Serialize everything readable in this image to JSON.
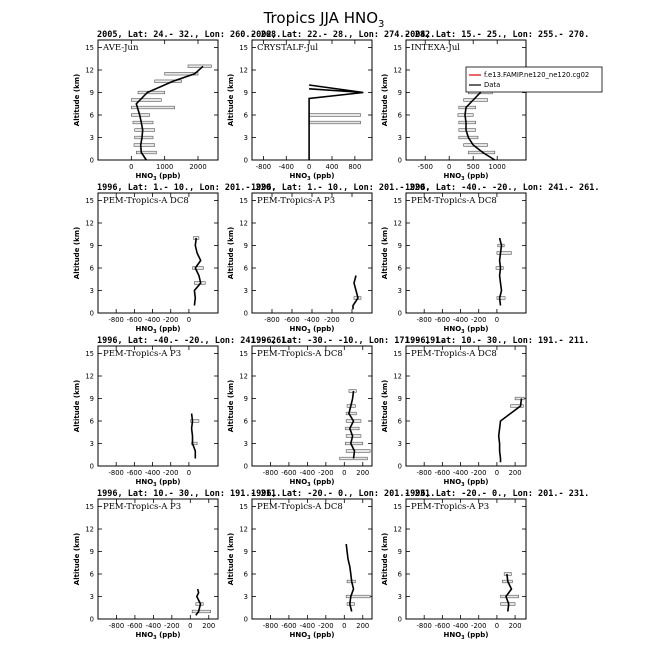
{
  "title": "Tropics JJA HNO",
  "title_sub": "3",
  "chart_data": [
    {
      "type": "line",
      "header": "2005, Lat: 24.- 32., Lon: 260.- 268.",
      "campaign": "AVE-Jun",
      "xlabel": "HNO3 (ppb)",
      "ylabel": "Altitude (km)",
      "xlim": [
        -1000,
        2600
      ],
      "xticks": [
        0,
        1000,
        2000
      ],
      "xtick_labels": [
        "0",
        "1000",
        "2000"
      ],
      "ylim": [
        0,
        16
      ],
      "yticks": [
        0,
        3,
        6,
        9,
        12,
        15
      ],
      "profile": {
        "x": [
          450,
          300,
          280,
          320,
          340,
          300,
          250,
          150,
          480,
          1250,
          1900,
          2150
        ],
        "y": [
          0,
          1,
          2,
          3,
          4,
          5,
          6,
          7.5,
          9,
          10.5,
          11.5,
          12.5
        ]
      },
      "bars": [
        {
          "y": 1,
          "lo": 150,
          "hi": 750
        },
        {
          "y": 2,
          "lo": 80,
          "hi": 700
        },
        {
          "y": 3,
          "lo": 100,
          "hi": 650
        },
        {
          "y": 4,
          "lo": 100,
          "hi": 700
        },
        {
          "y": 5,
          "lo": 50,
          "hi": 650
        },
        {
          "y": 6,
          "lo": 0,
          "hi": 550
        },
        {
          "y": 7,
          "lo": 0,
          "hi": 1300
        },
        {
          "y": 8,
          "lo": 0,
          "hi": 900
        },
        {
          "y": 9,
          "lo": 200,
          "hi": 1000
        },
        {
          "y": 10.5,
          "lo": 700,
          "hi": 1500
        },
        {
          "y": 11.5,
          "lo": 1000,
          "hi": 2000
        },
        {
          "y": 12.5,
          "lo": 1700,
          "hi": 2400
        }
      ]
    },
    {
      "type": "line",
      "header": "2002, Lat: 22.- 28., Lon: 274.- 282.",
      "campaign": "CRYSTALF-Jul",
      "xlabel": "HNO3 (ppb)",
      "ylabel": "Altitude (km)",
      "xlim": [
        -1000,
        1100
      ],
      "xticks": [
        -800,
        -400,
        0,
        400,
        800
      ],
      "xtick_labels": [
        "-800",
        "-400",
        "0",
        "400",
        "800"
      ],
      "ylim": [
        0,
        16
      ],
      "yticks": [
        0,
        3,
        6,
        9,
        12,
        15
      ],
      "profile": {
        "x": [
          0,
          0,
          0,
          0,
          0,
          950,
          0,
          950,
          0
        ],
        "y": [
          0,
          2,
          4,
          5.5,
          8.2,
          9,
          9.5,
          9,
          10
        ]
      },
      "bars": [
        {
          "y": 5,
          "lo": 0,
          "hi": 900
        },
        {
          "y": 6,
          "lo": 0,
          "hi": 900
        }
      ]
    },
    {
      "type": "line",
      "header": "2004, Lat: 15.- 25., Lon: 255.- 270.",
      "campaign": "INTEXA-Jul",
      "xlabel": "HNO3 (ppb)",
      "ylabel": "Altitude (km)",
      "xlim": [
        -900,
        1600
      ],
      "xticks": [
        -500,
        0,
        500,
        1000
      ],
      "xtick_labels": [
        "-500",
        "0",
        "500",
        "1000"
      ],
      "ylim": [
        0,
        16
      ],
      "yticks": [
        0,
        3,
        6,
        9,
        12,
        15
      ],
      "legend": [
        "f.e13.FAMIP.ne120_ne120.cg02",
        "Data"
      ],
      "profile": {
        "x": [
          950,
          700,
          500,
          400,
          350,
          350,
          330,
          350,
          500,
          650,
          700
        ],
        "y": [
          0,
          1,
          2,
          3,
          4,
          5,
          6,
          7,
          8,
          9,
          10
        ]
      },
      "bars": [
        {
          "y": 1,
          "lo": 400,
          "hi": 950
        },
        {
          "y": 2,
          "lo": 300,
          "hi": 800
        },
        {
          "y": 3,
          "lo": 200,
          "hi": 600
        },
        {
          "y": 4,
          "lo": 200,
          "hi": 550
        },
        {
          "y": 5,
          "lo": 200,
          "hi": 550
        },
        {
          "y": 6,
          "lo": 180,
          "hi": 500
        },
        {
          "y": 7,
          "lo": 200,
          "hi": 550
        },
        {
          "y": 8,
          "lo": 300,
          "hi": 800
        },
        {
          "y": 9,
          "lo": 400,
          "hi": 900
        },
        {
          "y": 10,
          "lo": 500,
          "hi": 900
        }
      ]
    },
    {
      "type": "line",
      "header": "1996, Lat: 1.- 10., Lon: 201.- 220.",
      "campaign": "PEM-Tropics-A DC8",
      "xlabel": "HNO3 (ppb)",
      "ylabel": "Altitude (km)",
      "xlim": [
        -1000,
        320
      ],
      "xticks": [
        -800,
        -600,
        -400,
        -200,
        0
      ],
      "xtick_labels": [
        "-800",
        "-600",
        "-400",
        "-200",
        "0"
      ],
      "ylim": [
        0,
        16
      ],
      "yticks": [
        0,
        3,
        6,
        9,
        12,
        15
      ],
      "profile": {
        "x": [
          60,
          70,
          60,
          130,
          110,
          70,
          130,
          90,
          70,
          80
        ],
        "y": [
          1,
          2,
          3,
          4,
          5,
          6,
          7,
          8,
          9,
          10
        ]
      },
      "bars": [
        {
          "y": 4,
          "lo": 60,
          "hi": 180
        },
        {
          "y": 6,
          "lo": 40,
          "hi": 160
        },
        {
          "y": 10,
          "lo": 50,
          "hi": 110
        }
      ]
    },
    {
      "type": "line",
      "header": "1996, Lat: 1.- 10., Lon: 201.- 220.",
      "campaign": "PEM-Tropics-A P3",
      "xlabel": "HNO3 (ppb)",
      "ylabel": "Altitude (km)",
      "xlim": [
        -1000,
        200
      ],
      "xticks": [
        -800,
        -600,
        -400,
        -200,
        0
      ],
      "xtick_labels": [
        "-800",
        "-600",
        "-400",
        "-200",
        "0"
      ],
      "ylim": [
        0,
        16
      ],
      "yticks": [
        0,
        3,
        6,
        9,
        12,
        15
      ],
      "profile": {
        "x": [
          10,
          10,
          60,
          20,
          40
        ],
        "y": [
          0.5,
          1,
          2,
          4,
          5
        ]
      },
      "bars": [
        {
          "y": 2,
          "lo": 20,
          "hi": 90
        }
      ]
    },
    {
      "type": "line",
      "header": "1996, Lat: -40.- -20., Lon: 241.- 261.",
      "campaign": "PEM-Tropics-A DC8",
      "xlabel": "HNO3 (ppb)",
      "ylabel": "Altitude (km)",
      "xlim": [
        -1000,
        320
      ],
      "xticks": [
        -800,
        -600,
        -400,
        -200,
        0
      ],
      "xtick_labels": [
        "-800",
        "-600",
        "-400",
        "-200",
        "0"
      ],
      "ylim": [
        0,
        16
      ],
      "yticks": [
        0,
        3,
        6,
        9,
        12,
        15
      ],
      "profile": {
        "x": [
          40,
          30,
          50,
          40,
          30,
          40,
          30,
          40,
          50,
          30
        ],
        "y": [
          1,
          2,
          3,
          4,
          5,
          6,
          7,
          8,
          9,
          10
        ]
      },
      "bars": [
        {
          "y": 2,
          "lo": 0,
          "hi": 90
        },
        {
          "y": 6,
          "lo": -10,
          "hi": 70
        },
        {
          "y": 8,
          "lo": 0,
          "hi": 160
        },
        {
          "y": 9,
          "lo": 10,
          "hi": 80
        }
      ]
    },
    {
      "type": "line",
      "header": "1996, Lat: -40.- -20., Lon: 241.- 261.",
      "campaign": "PEM-Tropics-A P3",
      "xlabel": "HNO3 (ppb)",
      "ylabel": "Altitude (km)",
      "xlim": [
        -1000,
        320
      ],
      "xticks": [
        -800,
        -600,
        -400,
        -200,
        0
      ],
      "xtick_labels": [
        "-800",
        "-600",
        "-400",
        "-200",
        "0"
      ],
      "ylim": [
        0,
        16
      ],
      "yticks": [
        0,
        3,
        6,
        9,
        12,
        15
      ],
      "profile": {
        "x": [
          70,
          70,
          40,
          40,
          30,
          40,
          30
        ],
        "y": [
          1,
          2,
          3,
          4,
          5,
          6,
          7
        ]
      },
      "bars": [
        {
          "y": 3,
          "lo": 30,
          "hi": 90
        },
        {
          "y": 6,
          "lo": 20,
          "hi": 110
        }
      ]
    },
    {
      "type": "line",
      "header": "1996, Lat: -30.- -10., Lon: 171.- 191.",
      "campaign": "PEM-Tropics-A DC8",
      "xlabel": "HNO3 (ppb)",
      "ylabel": "Altitude (km)",
      "xlim": [
        -1000,
        300
      ],
      "xticks": [
        -800,
        -600,
        -400,
        -200,
        0,
        200
      ],
      "xtick_labels": [
        "-800",
        "-600",
        "-400",
        "-200",
        "0",
        "200"
      ],
      "ylim": [
        0,
        16
      ],
      "yticks": [
        0,
        3,
        6,
        9,
        12,
        15
      ],
      "profile": {
        "x": [
          100,
          110,
          70,
          90,
          60,
          100,
          50,
          70,
          90,
          100
        ],
        "y": [
          1,
          2,
          3,
          4,
          5,
          6,
          7,
          8,
          9,
          10
        ]
      },
      "bars": [
        {
          "y": 1,
          "lo": -50,
          "hi": 250
        },
        {
          "y": 2,
          "lo": 20,
          "hi": 280
        },
        {
          "y": 3,
          "lo": 10,
          "hi": 200
        },
        {
          "y": 4,
          "lo": 20,
          "hi": 180
        },
        {
          "y": 5,
          "lo": 10,
          "hi": 160
        },
        {
          "y": 6,
          "lo": 20,
          "hi": 180
        },
        {
          "y": 7,
          "lo": 20,
          "hi": 130
        },
        {
          "y": 8,
          "lo": 30,
          "hi": 120
        },
        {
          "y": 10,
          "lo": 50,
          "hi": 130
        }
      ]
    },
    {
      "type": "line",
      "header": "1996, Lat: 10.- 30., Lon: 191.- 211.",
      "campaign": "PEM-Tropics-A DC8",
      "xlabel": "HNO3 (ppb)",
      "ylabel": "Altitude (km)",
      "xlim": [
        -1000,
        320
      ],
      "xticks": [
        -800,
        -600,
        -400,
        -200,
        0,
        200
      ],
      "xtick_labels": [
        "-800",
        "-600",
        "-400",
        "-200",
        "0",
        "200"
      ],
      "ylim": [
        0,
        16
      ],
      "yticks": [
        0,
        3,
        6,
        9,
        12,
        15
      ],
      "profile": {
        "x": [
          40,
          40,
          30,
          30,
          20,
          30,
          40,
          150,
          260,
          270
        ],
        "y": [
          0.5,
          1,
          2,
          3,
          4,
          5,
          6,
          7,
          8,
          9
        ]
      },
      "bars": [
        {
          "y": 8,
          "lo": 150,
          "hi": 290
        },
        {
          "y": 9,
          "lo": 200,
          "hi": 300
        }
      ]
    },
    {
      "type": "line",
      "header": "1996, Lat: 10.- 30., Lon: 191.- 211.",
      "campaign": "PEM-Tropics-A P3",
      "xlabel": "HNO3 (ppb)",
      "ylabel": "Altitude (km)",
      "xlim": [
        -1000,
        300
      ],
      "xticks": [
        -800,
        -600,
        -400,
        -200,
        0,
        200
      ],
      "xtick_labels": [
        "-800",
        "-600",
        "-400",
        "-200",
        "0",
        "200"
      ],
      "ylim": [
        0,
        16
      ],
      "yticks": [
        0,
        3,
        6,
        9,
        12,
        15
      ],
      "profile": {
        "x": [
          60,
          90,
          110,
          70,
          90,
          80
        ],
        "y": [
          0.5,
          1,
          2,
          3,
          3.5,
          4
        ]
      },
      "bars": [
        {
          "y": 1,
          "lo": 20,
          "hi": 220
        },
        {
          "y": 2,
          "lo": 60,
          "hi": 140
        }
      ]
    },
    {
      "type": "line",
      "header": "1996, Lat: -20.- 0., Lon: 201.- 231.",
      "campaign": "PEM-Tropics-A DC8",
      "xlabel": "HNO3 (ppb)",
      "ylabel": "Altitude (km)",
      "xlim": [
        -1000,
        300
      ],
      "xticks": [
        -800,
        -600,
        -400,
        -200,
        0,
        200
      ],
      "xtick_labels": [
        "-800",
        "-600",
        "-400",
        "-200",
        "0",
        "200"
      ],
      "ylim": [
        0,
        16
      ],
      "yticks": [
        0,
        3,
        6,
        9,
        12,
        15
      ],
      "profile": {
        "x": [
          80,
          60,
          70,
          100,
          80,
          70,
          60,
          40,
          30,
          20
        ],
        "y": [
          1,
          2,
          3,
          4,
          5,
          6,
          7,
          8,
          9,
          10
        ]
      },
      "bars": [
        {
          "y": 2,
          "lo": 30,
          "hi": 110
        },
        {
          "y": 3,
          "lo": 20,
          "hi": 280
        },
        {
          "y": 5,
          "lo": 30,
          "hi": 120
        }
      ]
    },
    {
      "type": "line",
      "header": "1996, Lat: -20.- 0., Lon: 201.- 231.",
      "campaign": "PEM-Tropics-A P3",
      "xlabel": "HNO3 (ppb)",
      "ylabel": "Altitude (km)",
      "xlim": [
        -1000,
        320
      ],
      "xticks": [
        -800,
        -600,
        -400,
        -200,
        0,
        200
      ],
      "xtick_labels": [
        "-800",
        "-600",
        "-400",
        "-200",
        "0",
        "200"
      ],
      "ylim": [
        0,
        16
      ],
      "yticks": [
        0,
        3,
        6,
        9,
        12,
        15
      ],
      "profile": {
        "x": [
          120,
          130,
          100,
          160,
          120,
          110
        ],
        "y": [
          1,
          2,
          3,
          4,
          5,
          6
        ]
      },
      "bars": [
        {
          "y": 2,
          "lo": 40,
          "hi": 200
        },
        {
          "y": 3,
          "lo": 40,
          "hi": 240
        },
        {
          "y": 5,
          "lo": 60,
          "hi": 170
        },
        {
          "y": 6,
          "lo": 80,
          "hi": 160
        }
      ]
    }
  ]
}
